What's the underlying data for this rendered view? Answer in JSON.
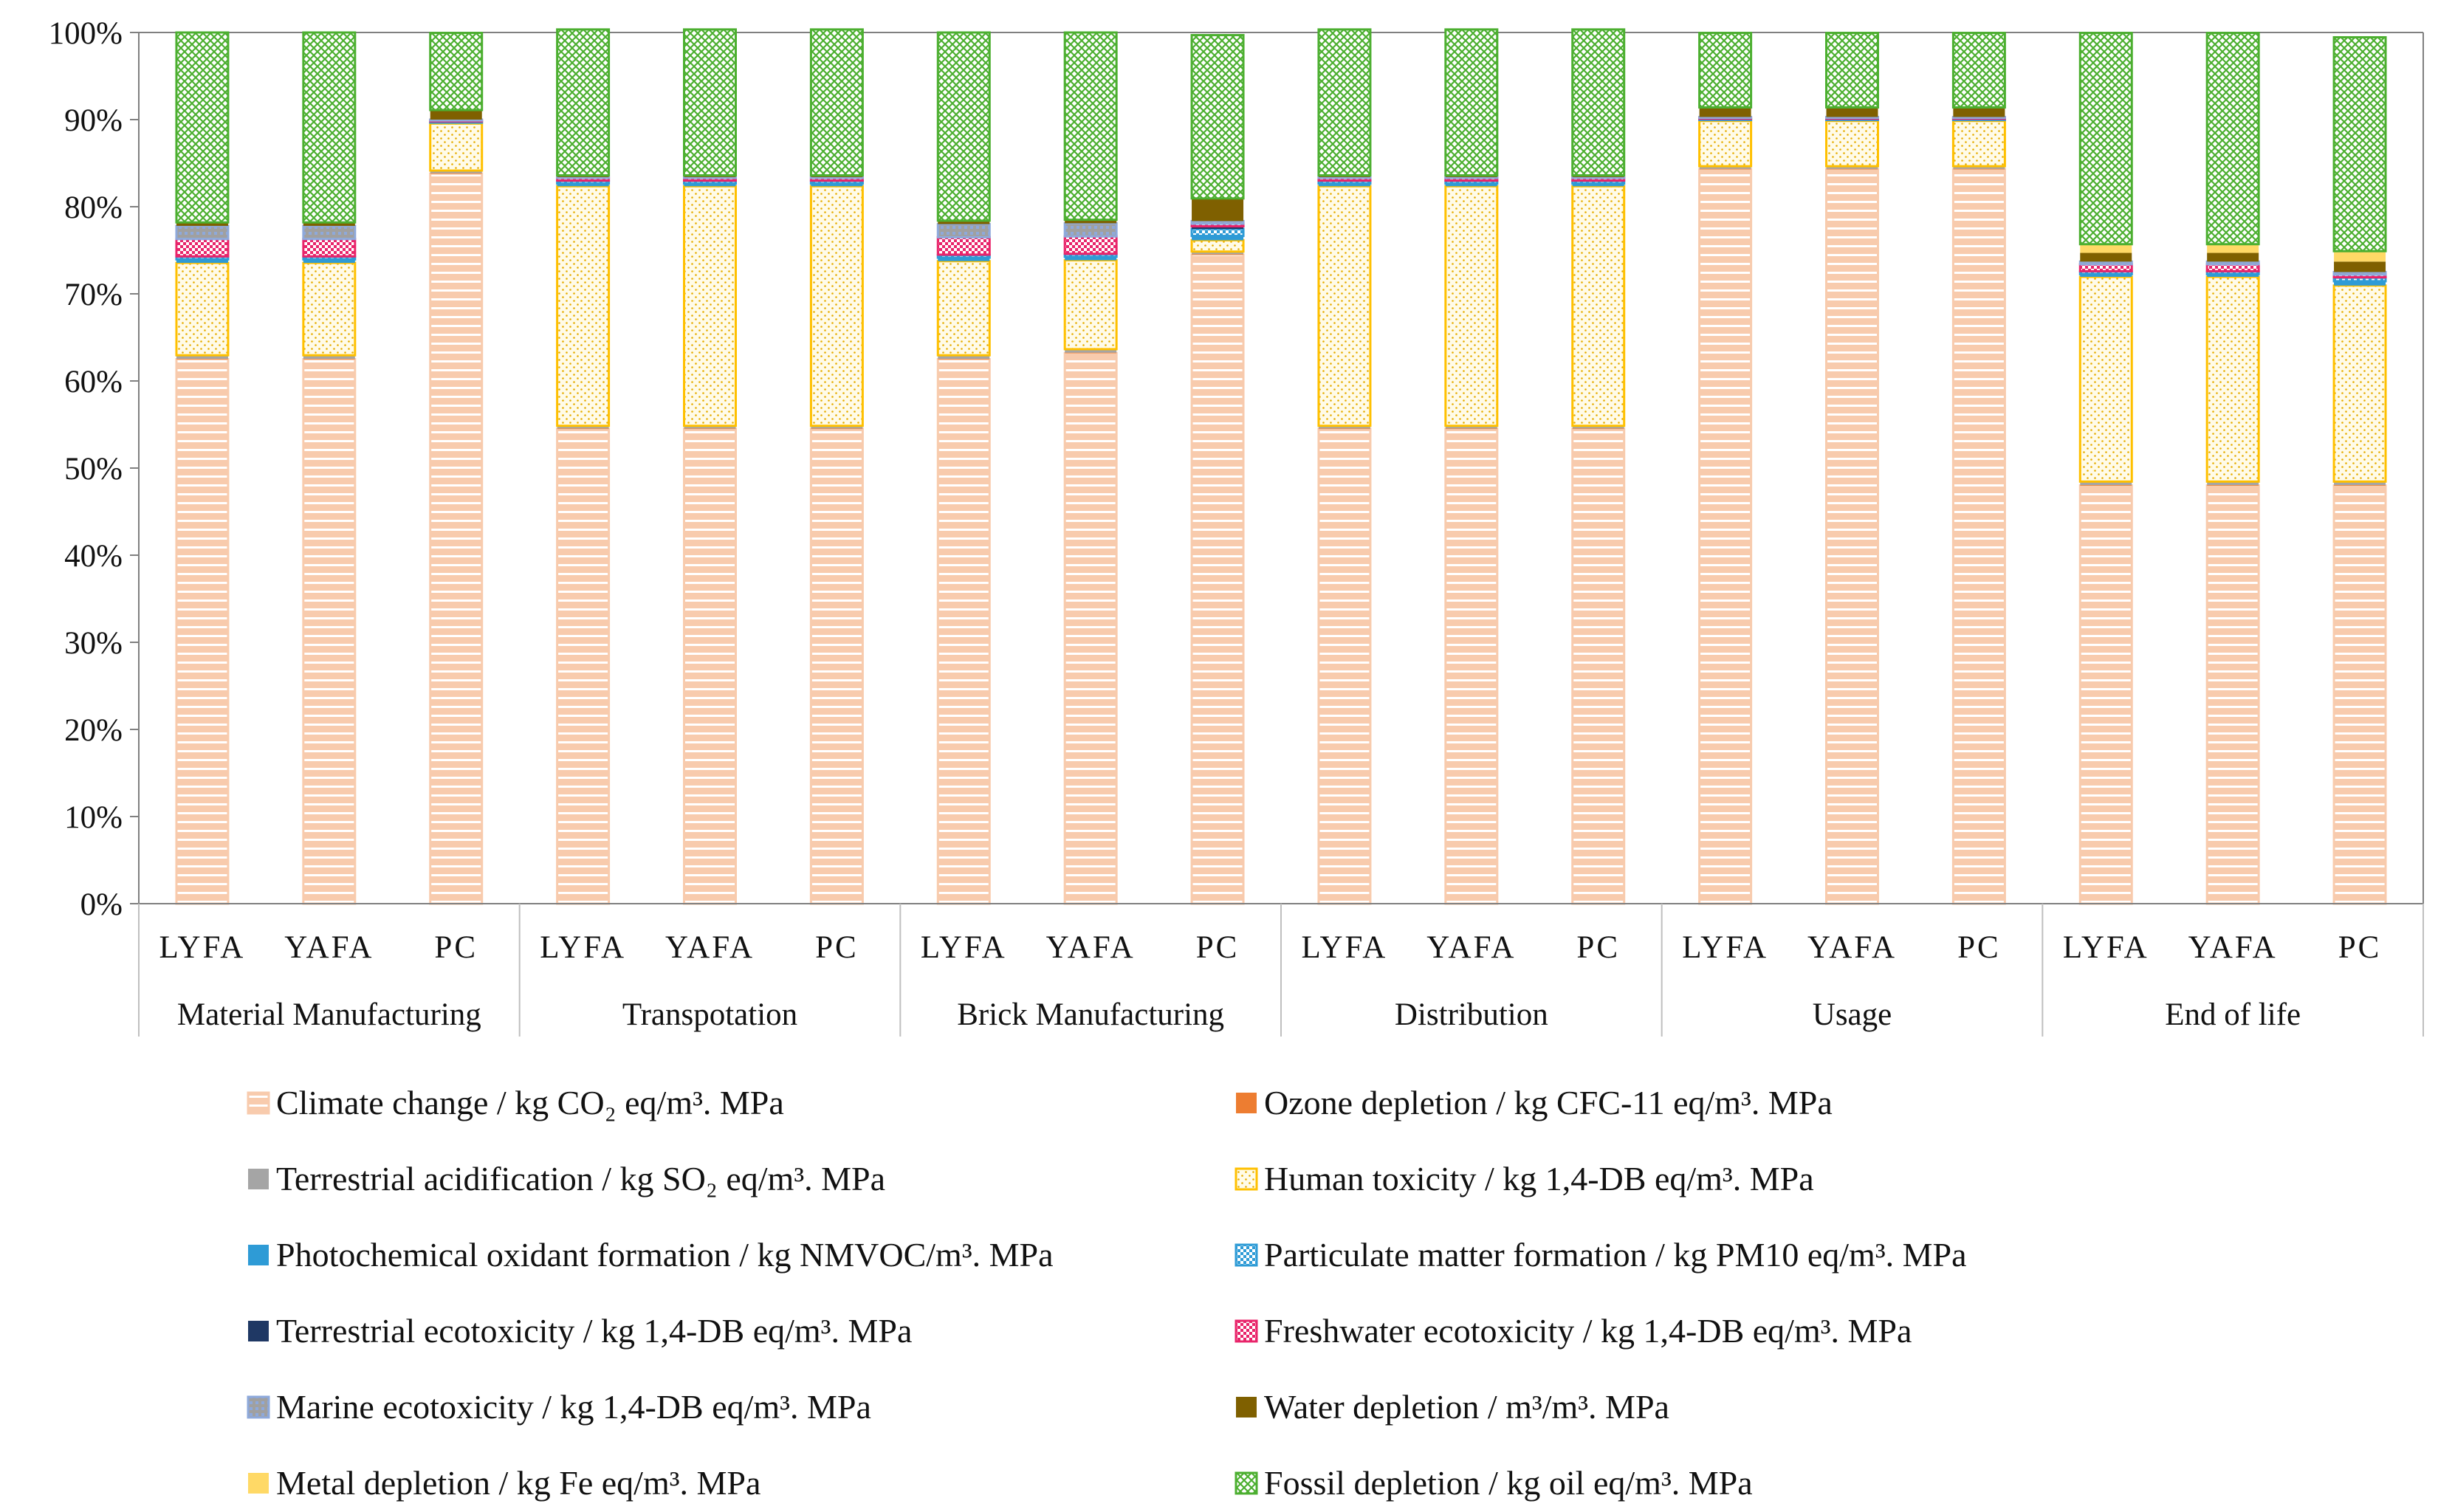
{
  "chart_data": {
    "type": "bar",
    "stacked": true,
    "normalized": true,
    "title": "",
    "xlabel": "",
    "ylabel": "",
    "ylim": [
      0,
      100
    ],
    "yticks": [
      "0%",
      "10%",
      "20%",
      "30%",
      "40%",
      "50%",
      "60%",
      "70%",
      "80%",
      "90%",
      "100%"
    ],
    "grid": false,
    "legend_position": "bottom",
    "groups": [
      {
        "name": "Material  Manufacturing",
        "categories": [
          "LYFA",
          "YAFA",
          "PC"
        ]
      },
      {
        "name": "Transpotation",
        "categories": [
          "LYFA",
          "YAFA",
          "PC"
        ]
      },
      {
        "name": "Brick Manufacturing",
        "categories": [
          "LYFA",
          "YAFA",
          "PC"
        ]
      },
      {
        "name": "Distribution",
        "categories": [
          "LYFA",
          "YAFA",
          "PC"
        ]
      },
      {
        "name": "Usage",
        "categories": [
          "LYFA",
          "YAFA",
          "PC"
        ]
      },
      {
        "name": "End of life",
        "categories": [
          "LYFA",
          "YAFA",
          "PC"
        ]
      }
    ],
    "series": [
      {
        "name": "Climate change / kg CO₂ eq/m³. MPa",
        "color": "#f8cbad",
        "pattern": "hstripe",
        "values": [
          62.5,
          62.5,
          83.8,
          54.5,
          54.5,
          54.5,
          62.5,
          63.2,
          74.5,
          54.5,
          54.5,
          54.5,
          84.3,
          84.3,
          84.3,
          48.0,
          48.0,
          48.0
        ]
      },
      {
        "name": "Ozone depletion / kg CFC-11 eq/m³. MPa",
        "color": "#ed7d31",
        "pattern": "solid",
        "values": [
          0.05,
          0.05,
          0.05,
          0.05,
          0.05,
          0.05,
          0.05,
          0.05,
          0.05,
          0.05,
          0.05,
          0.05,
          0.05,
          0.05,
          0.05,
          0.05,
          0.05,
          0.05
        ]
      },
      {
        "name": "Terrestrial acidification / kg SO₂ eq/m³. MPa",
        "color": "#a5a5a5",
        "pattern": "solid",
        "values": [
          0.4,
          0.4,
          0.3,
          0.3,
          0.3,
          0.3,
          0.4,
          0.4,
          0.3,
          0.3,
          0.3,
          0.3,
          0.3,
          0.3,
          0.3,
          0.4,
          0.4,
          0.4
        ]
      },
      {
        "name": "Human toxicity / kg 1,4-DB eq/m³. MPa",
        "color": "#ffc000",
        "pattern": "dots",
        "values": [
          10.6,
          10.6,
          5.4,
          27.5,
          27.5,
          27.5,
          10.8,
          10.2,
          1.3,
          27.5,
          27.5,
          27.5,
          5.2,
          5.2,
          5.2,
          23.5,
          23.5,
          22.5
        ]
      },
      {
        "name": "Photochemical oxidant formation / kg NMVOC/m³. MPa",
        "color": "#2e9bd6",
        "pattern": "solid",
        "values": [
          0.4,
          0.4,
          0.1,
          0.3,
          0.3,
          0.3,
          0.4,
          0.4,
          0.5,
          0.3,
          0.3,
          0.3,
          0.1,
          0.1,
          0.1,
          0.3,
          0.3,
          0.5
        ]
      },
      {
        "name": "Particulate matter formation / kg PM10 eq/m³. MPa",
        "color": "#2e9bd6",
        "pattern": "checker",
        "values": [
          0.3,
          0.3,
          0.1,
          0.3,
          0.3,
          0.3,
          0.3,
          0.3,
          0.8,
          0.3,
          0.3,
          0.3,
          0.1,
          0.1,
          0.1,
          0.3,
          0.3,
          0.4
        ]
      },
      {
        "name": "Terrestrial ecotoxicity / kg 1,4-DB eq/m³. MPa",
        "color": "#1f3864",
        "pattern": "solid",
        "values": [
          0.05,
          0.05,
          0.05,
          0.05,
          0.05,
          0.05,
          0.05,
          0.05,
          0.3,
          0.05,
          0.05,
          0.05,
          0.05,
          0.05,
          0.05,
          0.05,
          0.05,
          0.05
        ]
      },
      {
        "name": "Freshwater ecotoxicity / kg 1,4-DB eq/m³. MPa",
        "color": "#e8246a",
        "pattern": "checker",
        "values": [
          2.0,
          2.0,
          0.1,
          0.3,
          0.3,
          0.3,
          2.0,
          2.0,
          0.3,
          0.3,
          0.3,
          0.3,
          0.1,
          0.1,
          0.1,
          0.8,
          0.8,
          0.3
        ]
      },
      {
        "name": "Marine ecotoxicity / kg 1,4-DB eq/m³. MPa",
        "color": "#8ea9db",
        "pattern": "gray",
        "values": [
          1.5,
          1.5,
          0.1,
          0.1,
          0.1,
          0.1,
          1.5,
          1.5,
          0.3,
          0.1,
          0.1,
          0.1,
          0.1,
          0.1,
          0.1,
          0.3,
          0.3,
          0.3
        ]
      },
      {
        "name": "Water depletion / m³/m³. MPa",
        "color": "#7f6000",
        "pattern": "solid",
        "values": [
          0.3,
          0.3,
          1.0,
          0.1,
          0.1,
          0.1,
          0.3,
          0.3,
          2.5,
          0.1,
          0.1,
          0.1,
          1.0,
          1.0,
          1.0,
          1.0,
          1.0,
          1.2
        ]
      },
      {
        "name": "Metal depletion / kg Fe eq/m³. MPa",
        "color": "#ffd966",
        "pattern": "solid",
        "values": [
          0.1,
          0.1,
          0.1,
          0.1,
          0.1,
          0.1,
          0.1,
          0.1,
          0.1,
          0.1,
          0.1,
          0.1,
          0.1,
          0.1,
          0.1,
          1.0,
          1.0,
          1.2
        ]
      },
      {
        "name": "Fossil depletion / kg oil eq/m³. MPa",
        "color": "#4caf30",
        "pattern": "cross",
        "values": [
          21.8,
          21.8,
          8.85,
          16.75,
          16.75,
          16.75,
          21.6,
          21.5,
          18.75,
          16.75,
          16.75,
          16.75,
          8.55,
          8.55,
          8.55,
          24.25,
          24.25,
          24.55
        ]
      }
    ]
  }
}
